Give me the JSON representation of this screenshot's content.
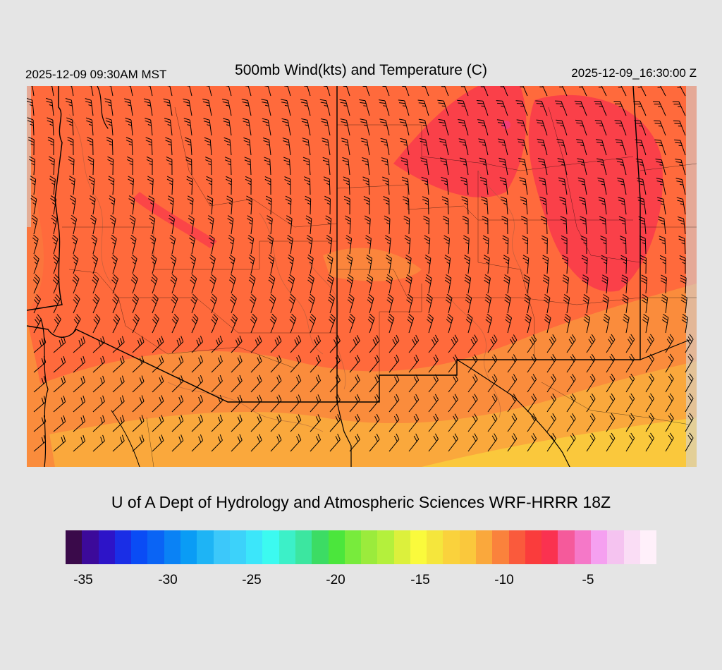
{
  "header": {
    "local_time": "2025-12-09 09:30AM MST",
    "title": "500mb Wind(kts) and Temperature (C)",
    "valid_time": "2025-12-09_16:30:00 Z"
  },
  "footer": {
    "credit": "U of A Dept of Hydrology and Atmospheric Sciences WRF-HRRR 18Z"
  },
  "colorbar": {
    "colors": [
      "#3a0a4a",
      "#3c0a9a",
      "#2d14c8",
      "#1a2ee6",
      "#0a4cf5",
      "#0a64f5",
      "#0a82f5",
      "#0a9cf5",
      "#1eb4f5",
      "#3cc8fa",
      "#3cd2fa",
      "#3ce6fa",
      "#3cfaf0",
      "#3cf0c8",
      "#3ce6a0",
      "#3cdc64",
      "#4be63c",
      "#78eb3c",
      "#9beb3c",
      "#b4f03c",
      "#dcf03c",
      "#fafa3c",
      "#f5e63c",
      "#fad23c",
      "#fac83c",
      "#faa83c",
      "#fa823c",
      "#fa5a3c",
      "#fa3c3c",
      "#fa3250",
      "#f55a9b",
      "#f578c8",
      "#f5a0f0",
      "#f5c3f0",
      "#faddf5",
      "#fff0fa"
    ],
    "ticks": [
      "-35",
      "-30",
      "-25",
      "-20",
      "-15",
      "-10",
      "-5"
    ]
  },
  "map": {
    "colors": {
      "background": "#ff6a3c",
      "warm_band": "#fa8c3c",
      "warmer_band": "#faa83c",
      "warmest_band": "#fac83c",
      "cold_core": "#fa3c4a",
      "coldest_spot": "#f53c78",
      "barb": "#000000",
      "border": "#000000",
      "contour": "#a05a3c"
    }
  }
}
